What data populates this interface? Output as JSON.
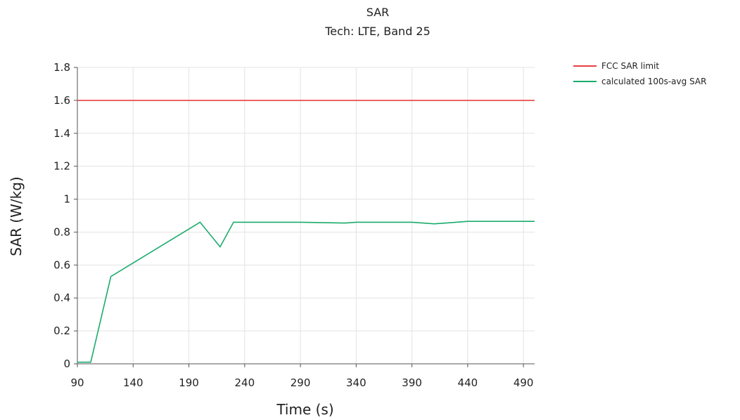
{
  "chart_data": {
    "type": "line",
    "title": "SAR",
    "subtitle": "Tech: LTE, Band 25",
    "xlabel": "Time (s)",
    "ylabel": "SAR (W/kg)",
    "xlim": [
      90,
      500
    ],
    "ylim": [
      0,
      1.8
    ],
    "x_ticks": [
      90,
      140,
      190,
      240,
      290,
      340,
      390,
      440,
      490
    ],
    "y_ticks": [
      0,
      0.2,
      0.4,
      0.6,
      0.8,
      1,
      1.2,
      1.4,
      1.6,
      1.8
    ],
    "grid": true,
    "legend_position": "top-right",
    "series": [
      {
        "name": "FCC SAR limit",
        "color": "#e8403f",
        "x": [
          90,
          500
        ],
        "y": [
          1.6,
          1.6
        ]
      },
      {
        "name": "calculated 100s-avg SAR",
        "color": "#1aab6d",
        "x": [
          90,
          102,
          120,
          200,
          218,
          230,
          260,
          290,
          330,
          340,
          390,
          410,
          420,
          440,
          470,
          500
        ],
        "y": [
          0.01,
          0.01,
          0.53,
          0.86,
          0.71,
          0.86,
          0.86,
          0.86,
          0.855,
          0.86,
          0.86,
          0.85,
          0.855,
          0.865,
          0.865,
          0.865
        ]
      }
    ]
  }
}
